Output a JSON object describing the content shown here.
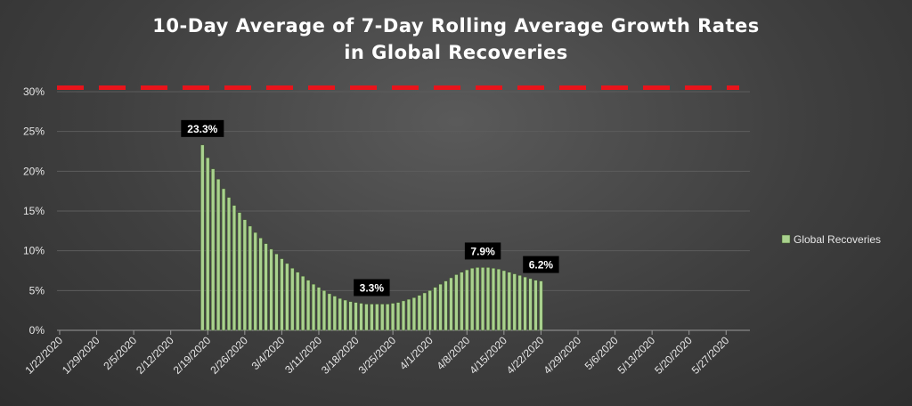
{
  "chart_data": {
    "type": "bar",
    "title_line1": "10-Day Average of 7-Day Rolling Average Growth Rates",
    "title_line2": "in Global Recoveries",
    "xlabel": "",
    "ylabel": "",
    "ylim": [
      0,
      30
    ],
    "yticks": [
      "0%",
      "5%",
      "10%",
      "15%",
      "20%",
      "25%",
      "30%"
    ],
    "xticks": [
      "1/22/2020",
      "1/29/2020",
      "2/5/2020",
      "2/12/2020",
      "2/19/2020",
      "2/26/2020",
      "3/4/2020",
      "3/11/2020",
      "3/18/2020",
      "3/25/2020",
      "4/1/2020",
      "4/8/2020",
      "4/15/2020",
      "4/22/2020",
      "4/29/2020",
      "5/6/2020",
      "5/13/2020",
      "5/20/2020",
      "5/27/2020"
    ],
    "x_start": "1/22/2020",
    "x_end": "5/31/2020",
    "grid": true,
    "legend_position": "right",
    "reference_line": {
      "value": 30.5,
      "style": "dashed",
      "color": "#e8141b"
    },
    "series": [
      {
        "name": "Global Recoveries",
        "color": "#a9d18e",
        "dates": [
          "2/18/2020",
          "2/19/2020",
          "2/20/2020",
          "2/21/2020",
          "2/22/2020",
          "2/23/2020",
          "2/24/2020",
          "2/25/2020",
          "2/26/2020",
          "2/27/2020",
          "2/28/2020",
          "2/29/2020",
          "3/1/2020",
          "3/2/2020",
          "3/3/2020",
          "3/4/2020",
          "3/5/2020",
          "3/6/2020",
          "3/7/2020",
          "3/8/2020",
          "3/9/2020",
          "3/10/2020",
          "3/11/2020",
          "3/12/2020",
          "3/13/2020",
          "3/14/2020",
          "3/15/2020",
          "3/16/2020",
          "3/17/2020",
          "3/18/2020",
          "3/19/2020",
          "3/20/2020",
          "3/21/2020",
          "3/22/2020",
          "3/23/2020",
          "3/24/2020",
          "3/25/2020",
          "3/26/2020",
          "3/27/2020",
          "3/28/2020",
          "3/29/2020",
          "3/30/2020",
          "3/31/2020",
          "4/1/2020",
          "4/2/2020",
          "4/3/2020",
          "4/4/2020",
          "4/5/2020",
          "4/6/2020",
          "4/7/2020",
          "4/8/2020",
          "4/9/2020",
          "4/10/2020",
          "4/11/2020",
          "4/12/2020",
          "4/13/2020",
          "4/14/2020",
          "4/15/2020",
          "4/16/2020",
          "4/17/2020",
          "4/18/2020",
          "4/19/2020",
          "4/20/2020",
          "4/21/2020",
          "4/22/2020"
        ],
        "values": [
          23.3,
          21.7,
          20.3,
          19.0,
          17.8,
          16.7,
          15.7,
          14.8,
          13.9,
          13.1,
          12.3,
          11.6,
          10.9,
          10.2,
          9.6,
          9.0,
          8.4,
          7.8,
          7.3,
          6.8,
          6.3,
          5.8,
          5.4,
          5.0,
          4.6,
          4.3,
          4.0,
          3.8,
          3.6,
          3.5,
          3.4,
          3.3,
          3.3,
          3.3,
          3.3,
          3.3,
          3.4,
          3.5,
          3.7,
          3.9,
          4.1,
          4.4,
          4.7,
          5.0,
          5.4,
          5.8,
          6.2,
          6.6,
          7.0,
          7.3,
          7.6,
          7.8,
          7.9,
          7.9,
          7.9,
          7.8,
          7.7,
          7.5,
          7.3,
          7.1,
          6.9,
          6.7,
          6.5,
          6.3,
          6.2
        ]
      }
    ],
    "data_labels": [
      {
        "date": "2/18/2020",
        "value": 23.3,
        "text": "23.3%"
      },
      {
        "date": "3/21/2020",
        "value": 3.3,
        "text": "3.3%"
      },
      {
        "date": "4/11/2020",
        "value": 7.9,
        "text": "7.9%"
      },
      {
        "date": "4/22/2020",
        "value": 6.2,
        "text": "6.2%"
      }
    ]
  }
}
